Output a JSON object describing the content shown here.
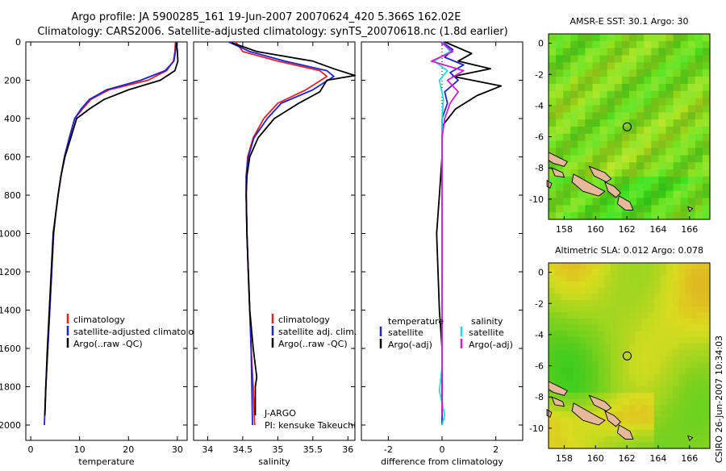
{
  "title_line1": "Argo profile: JA 5900285_161 19-Jun-2007 20070624_420 5.366S 162.02E",
  "title_line2": "Climatology: CARS2006. Satellite-adjusted climatology: synTS_20070618.nc (1.8d earlier)",
  "side_label": "CSIRO 26-Jun-2007 10:34:03",
  "colors": {
    "clim": "#e8201e",
    "sat": "#1c22d8",
    "argo": "#000000",
    "sat_sal": "#22dddd",
    "argo_sal": "#d21ed2"
  },
  "chart_data": [
    {
      "id": "temp",
      "type": "line",
      "xlabel": "temperature",
      "ylabel": "",
      "xlim": [
        -1,
        32
      ],
      "ylim": [
        2080,
        0
      ],
      "xticks": [
        0,
        10,
        20,
        30
      ],
      "yticks": [
        0,
        200,
        400,
        600,
        800,
        1000,
        1200,
        1400,
        1600,
        1800,
        2000
      ],
      "legend_labels": [
        "climatology",
        "satellite-adjusted climatology",
        "Argo(..raw -QC)"
      ],
      "series": [
        {
          "name": "climatology",
          "color": "#e8201e",
          "points": [
            [
              29.6,
              0
            ],
            [
              29.5,
              50
            ],
            [
              29.2,
              100
            ],
            [
              27.8,
              150
            ],
            [
              24,
              200
            ],
            [
              16,
              250
            ],
            [
              12.3,
              300
            ],
            [
              10.6,
              350
            ],
            [
              9,
              400
            ],
            [
              7.9,
              500
            ],
            [
              6.9,
              600
            ],
            [
              6.2,
              700
            ],
            [
              5.6,
              800
            ],
            [
              5.1,
              900
            ],
            [
              4.7,
              1000
            ],
            [
              4.3,
              1200
            ],
            [
              3.9,
              1400
            ],
            [
              3.5,
              1600
            ],
            [
              3.1,
              1800
            ],
            [
              2.9,
              1950
            ]
          ]
        },
        {
          "name": "satellite-adjusted climatology",
          "color": "#1c22d8",
          "points": [
            [
              29.7,
              0
            ],
            [
              29.6,
              50
            ],
            [
              29.3,
              100
            ],
            [
              27.5,
              150
            ],
            [
              22.5,
              200
            ],
            [
              15.5,
              250
            ],
            [
              12,
              300
            ],
            [
              10.3,
              350
            ],
            [
              9,
              400
            ],
            [
              7.9,
              500
            ],
            [
              6.9,
              600
            ],
            [
              6.2,
              700
            ],
            [
              5.6,
              800
            ],
            [
              5.1,
              900
            ],
            [
              4.7,
              1000
            ],
            [
              4.3,
              1200
            ],
            [
              3.9,
              1400
            ],
            [
              3.5,
              1600
            ],
            [
              3.1,
              1800
            ],
            [
              2.8,
              2000
            ]
          ]
        },
        {
          "name": "Argo(..raw -QC)",
          "color": "#000000",
          "points": [
            [
              29.8,
              5
            ],
            [
              30,
              50
            ],
            [
              30.1,
              100
            ],
            [
              29.5,
              150
            ],
            [
              26.5,
              200
            ],
            [
              20,
              250
            ],
            [
              15,
              300
            ],
            [
              12,
              350
            ],
            [
              9.4,
              400
            ],
            [
              8.2,
              500
            ],
            [
              7,
              600
            ],
            [
              6.2,
              700
            ],
            [
              5.6,
              800
            ],
            [
              5.1,
              900
            ],
            [
              4.6,
              1000
            ],
            [
              4.2,
              1200
            ],
            [
              3.8,
              1400
            ],
            [
              3.4,
              1600
            ],
            [
              3.1,
              1800
            ],
            [
              2.9,
              1950
            ]
          ]
        }
      ]
    },
    {
      "id": "sal",
      "type": "line",
      "xlabel": "salinity",
      "ylabel": "",
      "xlim": [
        33.8,
        36.1
      ],
      "ylim": [
        2080,
        0
      ],
      "xticks": [
        34,
        34.5,
        35,
        35.5,
        36
      ],
      "yticks": [
        0,
        200,
        400,
        600,
        800,
        1000,
        1200,
        1400,
        1600,
        1800,
        2000
      ],
      "legend_labels": [
        "climatology",
        "satellite adj. clim.",
        "Argo(..raw -QC)"
      ],
      "annotations": [
        "J-ARGO",
        "PI: kensuke Takeuchi"
      ],
      "series": [
        {
          "name": "climatology",
          "color": "#e8201e",
          "points": [
            [
              34.4,
              0
            ],
            [
              34.5,
              50
            ],
            [
              35,
              100
            ],
            [
              35.6,
              150
            ],
            [
              35.7,
              180
            ],
            [
              35.4,
              250
            ],
            [
              35,
              320
            ],
            [
              34.8,
              400
            ],
            [
              34.65,
              500
            ],
            [
              34.57,
              600
            ],
            [
              34.55,
              700
            ],
            [
              34.55,
              800
            ],
            [
              34.56,
              1000
            ],
            [
              34.58,
              1200
            ],
            [
              34.6,
              1400
            ],
            [
              34.62,
              1600
            ],
            [
              34.65,
              1800
            ],
            [
              34.67,
              2000
            ]
          ]
        },
        {
          "name": "satellite adj. clim.",
          "color": "#1c22d8",
          "points": [
            [
              34.3,
              0
            ],
            [
              34.6,
              50
            ],
            [
              35.1,
              100
            ],
            [
              35.7,
              150
            ],
            [
              35.8,
              180
            ],
            [
              35.5,
              250
            ],
            [
              35.05,
              320
            ],
            [
              34.85,
              400
            ],
            [
              34.66,
              500
            ],
            [
              34.58,
              600
            ],
            [
              34.55,
              700
            ],
            [
              34.55,
              800
            ],
            [
              34.56,
              1000
            ],
            [
              34.58,
              1200
            ],
            [
              34.6,
              1400
            ],
            [
              34.62,
              1600
            ],
            [
              34.63,
              1800
            ],
            [
              34.64,
              2000
            ]
          ]
        },
        {
          "name": "Argo(..raw -QC)",
          "color": "#000000",
          "points": [
            [
              34.35,
              5
            ],
            [
              34.7,
              50
            ],
            [
              35.5,
              100
            ],
            [
              35.8,
              140
            ],
            [
              36.1,
              175
            ],
            [
              35.7,
              200
            ],
            [
              35.6,
              260
            ],
            [
              35.3,
              320
            ],
            [
              34.95,
              400
            ],
            [
              34.72,
              500
            ],
            [
              34.6,
              600
            ],
            [
              34.56,
              700
            ],
            [
              34.55,
              800
            ],
            [
              34.56,
              1000
            ],
            [
              34.58,
              1200
            ],
            [
              34.6,
              1400
            ],
            [
              34.65,
              1600
            ],
            [
              34.7,
              1750
            ],
            [
              34.68,
              1800
            ],
            [
              34.68,
              1950
            ]
          ]
        }
      ]
    },
    {
      "id": "diff",
      "type": "line",
      "xlabel": "difference from climatology",
      "ylabel": "",
      "xlim": [
        -3,
        3
      ],
      "ylim": [
        2080,
        0
      ],
      "xticks": [
        -2,
        0,
        2
      ],
      "yticks": [
        0,
        200,
        400,
        600,
        800,
        1000,
        1200,
        1400,
        1600,
        1800,
        2000
      ],
      "legend_headers": [
        "temperature",
        "salinity"
      ],
      "legend_labels": [
        "satellite",
        "Argo(-adj)",
        "satellite",
        "Argo(-adj)"
      ],
      "series": [
        {
          "name": "temperature satellite",
          "color": "#1c22d8",
          "points": [
            [
              0,
              0
            ],
            [
              0.4,
              40
            ],
            [
              0.1,
              80
            ],
            [
              0.8,
              120
            ],
            [
              0.3,
              160
            ],
            [
              0.6,
              200
            ],
            [
              0.1,
              260
            ],
            [
              0.2,
              320
            ],
            [
              0,
              400
            ],
            [
              0,
              600
            ],
            [
              0,
              1000
            ],
            [
              0,
              1500
            ],
            [
              0,
              2000
            ]
          ]
        },
        {
          "name": "temperature Argo(-adj)",
          "color": "#000000",
          "points": [
            [
              0.1,
              0
            ],
            [
              1.1,
              60
            ],
            [
              0.6,
              100
            ],
            [
              1.8,
              140
            ],
            [
              0.4,
              180
            ],
            [
              2.2,
              230
            ],
            [
              1.3,
              280
            ],
            [
              0.5,
              350
            ],
            [
              0,
              440
            ],
            [
              0,
              600
            ],
            [
              -0.1,
              800
            ],
            [
              -0.2,
              1000
            ],
            [
              -0.15,
              1200
            ],
            [
              -0.1,
              1400
            ],
            [
              0,
              1600
            ],
            [
              0,
              1800
            ],
            [
              0,
              1950
            ]
          ]
        },
        {
          "name": "salinity satellite",
          "color": "#22dddd",
          "points": [
            [
              0,
              0
            ],
            [
              0.3,
              50
            ],
            [
              -0.3,
              100
            ],
            [
              0.2,
              150
            ],
            [
              -0.1,
              200
            ],
            [
              0.05,
              300
            ],
            [
              0,
              400
            ],
            [
              0,
              1000
            ],
            [
              0,
              1700
            ],
            [
              -0.1,
              1820
            ],
            [
              0.1,
              1950
            ],
            [
              0,
              2000
            ]
          ]
        },
        {
          "name": "salinity Argo(-adj)",
          "color": "#d21ed2",
          "points": [
            [
              -0.05,
              0
            ],
            [
              0.4,
              50
            ],
            [
              -0.4,
              100
            ],
            [
              0.8,
              150
            ],
            [
              0.2,
              200
            ],
            [
              0.6,
              260
            ],
            [
              0.3,
              320
            ],
            [
              0.1,
              400
            ],
            [
              0,
              500
            ],
            [
              0,
              1000
            ],
            [
              0,
              1500
            ],
            [
              0,
              1950
            ]
          ]
        }
      ]
    }
  ],
  "maps": [
    {
      "title": "AMSR-E SST: 30.1 Argo: 30",
      "xticks": [
        158,
        160,
        162,
        164,
        166
      ],
      "yticks": [
        0,
        -2,
        -4,
        -6,
        -8,
        -10
      ],
      "variant": "sst"
    },
    {
      "title": "Altimetric SLA: 0.012 Argo: 0.078",
      "xticks": [
        158,
        160,
        162,
        164,
        166
      ],
      "yticks": [
        0,
        -2,
        -4,
        -6,
        -8,
        -10
      ],
      "variant": "sla"
    }
  ]
}
